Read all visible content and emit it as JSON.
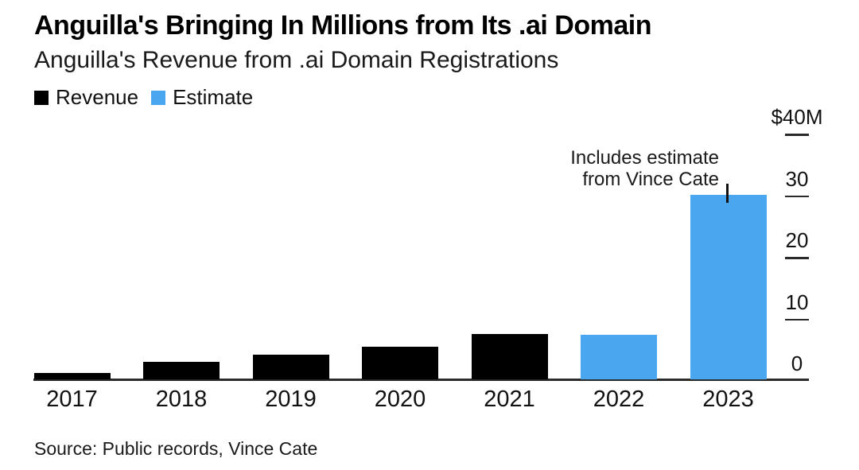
{
  "header": {
    "title": "Anguilla's Bringing In Millions from Its .ai Domain",
    "subtitle": "Anguilla's Revenue from .ai Domain Registrations"
  },
  "legend": {
    "items": [
      {
        "label": "Revenue",
        "color": "#000000"
      },
      {
        "label": "Estimate",
        "color": "#4AA6EF"
      }
    ]
  },
  "annotation": {
    "line1": "Includes estimate",
    "line2": "from Vince Cate"
  },
  "source": "Source: Public records, Vince Cate",
  "colors": {
    "revenue_bar": "#000000",
    "estimate_bar": "#4AA6EF",
    "axis": "#2a2a2a"
  },
  "chart_data": {
    "type": "bar",
    "title": "Anguilla's Bringing In Millions from Its .ai Domain",
    "subtitle": "Anguilla's Revenue from .ai Domain Registrations",
    "unit": "USD millions",
    "categories": [
      "2017",
      "2018",
      "2019",
      "2020",
      "2021",
      "2022",
      "2023"
    ],
    "series": [
      {
        "name": "Revenue",
        "color": "#000000",
        "values": [
          1.0,
          2.9,
          4.0,
          5.3,
          7.4,
          null,
          null
        ]
      },
      {
        "name": "Estimate",
        "color": "#4AA6EF",
        "values": [
          null,
          null,
          null,
          null,
          null,
          7.2,
          30
        ]
      }
    ],
    "ylim": [
      0,
      40
    ],
    "yticks": [
      {
        "value": 40,
        "label": "$40M"
      },
      {
        "value": 30,
        "label": "30"
      },
      {
        "value": 20,
        "label": "20"
      },
      {
        "value": 10,
        "label": "10"
      },
      {
        "value": 0,
        "label": "0"
      }
    ],
    "axis_side": "right",
    "grid": false,
    "legend_position": "top-left",
    "annotation": {
      "text": "Includes estimate from Vince Cate",
      "target_category": "2023"
    },
    "source": "Source: Public records, Vince Cate"
  }
}
